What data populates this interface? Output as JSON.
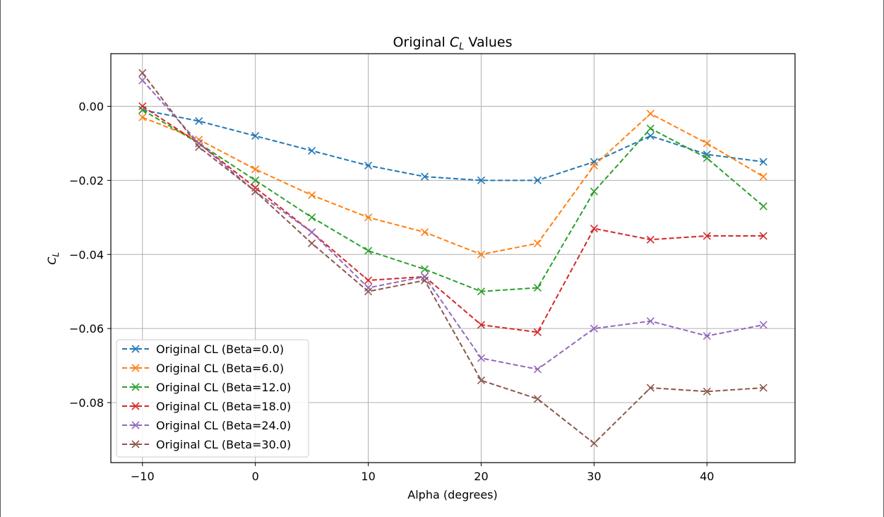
{
  "chart_data": {
    "type": "line",
    "title": "Original C_L Values",
    "title_prefix": "Original ",
    "title_symbol": "C",
    "title_subscript": "L",
    "title_suffix": " Values",
    "xlabel": "Alpha (degrees)",
    "ylabel_symbol": "C",
    "ylabel_subscript": "L",
    "xlim": [
      -12.8,
      47.8
    ],
    "ylim": [
      -0.0962,
      0.0142
    ],
    "x_ticks": [
      -10,
      0,
      10,
      20,
      30,
      40
    ],
    "x_tick_labels": [
      "−10",
      "0",
      "10",
      "20",
      "30",
      "40"
    ],
    "y_ticks": [
      0.0,
      -0.02,
      -0.04,
      -0.06,
      -0.08
    ],
    "y_tick_labels": [
      "0.00",
      "−0.02",
      "−0.04",
      "−0.06",
      "−0.08"
    ],
    "grid": true,
    "legend_position": "lower-left",
    "line_style": "dashed",
    "marker": "x",
    "x": [
      -10,
      -5,
      0,
      5,
      10,
      15,
      20,
      25,
      30,
      35,
      40,
      45
    ],
    "series": [
      {
        "name": "Original CL (Beta=0.0)",
        "color": "#1f77b4",
        "values": [
          -0.001,
          -0.004,
          -0.008,
          -0.012,
          -0.016,
          -0.019,
          -0.02,
          -0.02,
          -0.015,
          -0.008,
          -0.013,
          -0.015
        ]
      },
      {
        "name": "Original CL (Beta=6.0)",
        "color": "#ff7f0e",
        "values": [
          -0.003,
          -0.009,
          -0.017,
          -0.024,
          -0.03,
          -0.034,
          -0.04,
          -0.037,
          -0.016,
          -0.002,
          -0.01,
          -0.019
        ]
      },
      {
        "name": "Original CL (Beta=12.0)",
        "color": "#2ca02c",
        "values": [
          -0.001,
          -0.01,
          -0.02,
          -0.03,
          -0.039,
          -0.044,
          -0.05,
          -0.049,
          -0.023,
          -0.006,
          -0.014,
          -0.027
        ]
      },
      {
        "name": "Original CL (Beta=18.0)",
        "color": "#d62728",
        "values": [
          0.0,
          -0.01,
          -0.022,
          -0.034,
          -0.047,
          -0.046,
          -0.059,
          -0.061,
          -0.033,
          -0.036,
          -0.035,
          -0.035
        ]
      },
      {
        "name": "Original CL (Beta=24.0)",
        "color": "#9467bd",
        "values": [
          0.007,
          -0.01,
          -0.023,
          -0.034,
          -0.049,
          -0.046,
          -0.068,
          -0.071,
          -0.06,
          -0.058,
          -0.062,
          -0.059
        ]
      },
      {
        "name": "Original CL (Beta=30.0)",
        "color": "#8c564b",
        "values": [
          0.009,
          -0.011,
          -0.023,
          -0.037,
          -0.05,
          -0.047,
          -0.074,
          -0.079,
          -0.091,
          -0.076,
          -0.077,
          -0.076
        ]
      }
    ]
  }
}
